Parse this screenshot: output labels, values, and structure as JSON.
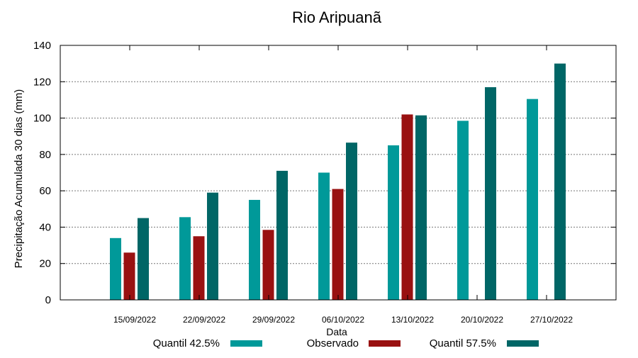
{
  "chart_data": {
    "type": "bar",
    "title": "Rio Aripuanã",
    "xlabel": "Data",
    "ylabel": "Precipitação Acumulada 30 dias (mm)",
    "ylim": [
      0,
      140
    ],
    "yticks": [
      0,
      20,
      40,
      60,
      80,
      100,
      120,
      140
    ],
    "grid": true,
    "legend_position": "bottom",
    "categories": [
      "15/09/2022",
      "22/09/2022",
      "29/09/2022",
      "06/10/2022",
      "13/10/2022",
      "20/10/2022",
      "27/10/2022"
    ],
    "series": [
      {
        "name": "Quantil 42.5%",
        "color": "#009999",
        "values": [
          34,
          45.5,
          55,
          70,
          85,
          98.5,
          110.5
        ]
      },
      {
        "name": "Observado",
        "color": "#991111",
        "values": [
          26,
          35,
          38.5,
          61,
          102,
          null,
          null
        ]
      },
      {
        "name": "Quantil 57.5%",
        "color": "#006666",
        "values": [
          45,
          59,
          71,
          86.5,
          101.5,
          117,
          130
        ]
      }
    ]
  }
}
